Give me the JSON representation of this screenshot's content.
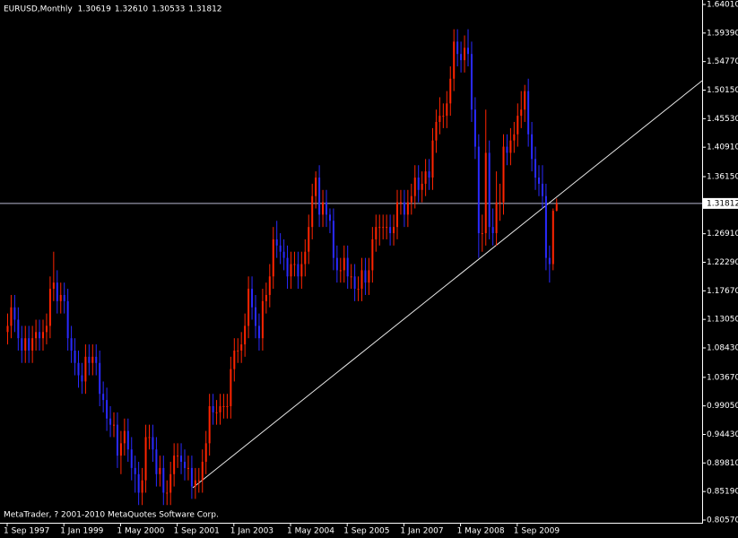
{
  "chart_data": {
    "type": "candlestick",
    "title": "EURUSD,Monthly",
    "last_bar": [
      {
        "value": 1.30619,
        "label": "1.30619"
      },
      {
        "value": 1.3261,
        "label": "1.32610"
      },
      {
        "value": 1.30533,
        "label": "1.30533"
      },
      {
        "value": 1.31812,
        "label": "1.31812"
      }
    ],
    "footer": "MetaTrader, ? 2001-2010 MetaQuotes Software Corp.",
    "up_color": "#ff2400",
    "down_color": "#2a2aff",
    "background": "#000000",
    "grid": false,
    "current_price": {
      "value": 1.31812,
      "label": "1.31812"
    },
    "ylim": [
      0.8057,
      1.6401
    ],
    "yticks": [
      {
        "value": 1.6401,
        "label": "1.64010"
      },
      {
        "value": 1.5939,
        "label": "1.59390"
      },
      {
        "value": 1.5477,
        "label": "1.54770"
      },
      {
        "value": 1.5015,
        "label": "1.50150"
      },
      {
        "value": 1.4553,
        "label": "1.45530"
      },
      {
        "value": 1.4091,
        "label": "1.40910"
      },
      {
        "value": 1.3615,
        "label": "1.36150"
      },
      {
        "value": 1.2691,
        "label": "1.26910"
      },
      {
        "value": 1.2229,
        "label": "1.22290"
      },
      {
        "value": 1.1767,
        "label": "1.17670"
      },
      {
        "value": 1.1305,
        "label": "1.13050"
      },
      {
        "value": 1.0843,
        "label": "1.08430"
      },
      {
        "value": 1.0367,
        "label": "1.03670"
      },
      {
        "value": 0.9905,
        "label": "0.99050"
      },
      {
        "value": 0.9443,
        "label": "0.94430"
      },
      {
        "value": 0.8981,
        "label": "0.89810"
      },
      {
        "value": 0.8519,
        "label": "0.85190"
      },
      {
        "value": 0.8057,
        "label": "0.80570"
      }
    ],
    "categories": [
      "1 Sep 1997",
      null,
      null,
      null,
      null,
      null,
      null,
      null,
      null,
      null,
      null,
      null,
      null,
      null,
      null,
      null,
      "1 Jan 1999",
      null,
      null,
      null,
      null,
      null,
      null,
      null,
      null,
      null,
      null,
      null,
      null,
      null,
      null,
      null,
      "1 May 2000",
      null,
      null,
      null,
      null,
      null,
      null,
      null,
      null,
      null,
      null,
      null,
      null,
      null,
      null,
      null,
      "1 Sep 2001",
      null,
      null,
      null,
      null,
      null,
      null,
      null,
      null,
      null,
      null,
      null,
      null,
      null,
      null,
      null,
      "1 Jan 2003",
      null,
      null,
      null,
      null,
      null,
      null,
      null,
      null,
      null,
      null,
      null,
      null,
      null,
      null,
      null,
      "1 May 2004",
      null,
      null,
      null,
      null,
      null,
      null,
      null,
      null,
      null,
      null,
      null,
      null,
      null,
      null,
      null,
      "1 Sep 2005",
      null,
      null,
      null,
      null,
      null,
      null,
      null,
      null,
      null,
      null,
      null,
      null,
      null,
      null,
      null,
      "1 Jan 2007",
      null,
      null,
      null,
      null,
      null,
      null,
      null,
      null,
      null,
      null,
      null,
      null,
      null,
      null,
      null,
      "1 May 2008",
      null,
      null,
      null,
      null,
      null,
      null,
      null,
      null,
      null,
      null,
      null,
      null,
      null,
      null,
      null,
      "1 Sep 2009",
      null,
      null,
      null,
      null,
      null,
      null,
      null,
      null,
      null,
      null,
      null
    ],
    "candles": [
      [
        1.11,
        1.14,
        1.09,
        1.12
      ],
      [
        1.12,
        1.17,
        1.1,
        1.15
      ],
      [
        1.15,
        1.17,
        1.11,
        1.13
      ],
      [
        1.13,
        1.15,
        1.08,
        1.1
      ],
      [
        1.1,
        1.12,
        1.06,
        1.08
      ],
      [
        1.08,
        1.12,
        1.06,
        1.1
      ],
      [
        1.1,
        1.12,
        1.06,
        1.08
      ],
      [
        1.08,
        1.12,
        1.06,
        1.1
      ],
      [
        1.1,
        1.13,
        1.08,
        1.11
      ],
      [
        1.11,
        1.13,
        1.08,
        1.1
      ],
      [
        1.1,
        1.13,
        1.08,
        1.11
      ],
      [
        1.11,
        1.14,
        1.09,
        1.12
      ],
      [
        1.12,
        1.2,
        1.1,
        1.18
      ],
      [
        1.18,
        1.24,
        1.16,
        1.19
      ],
      [
        1.19,
        1.21,
        1.14,
        1.16
      ],
      [
        1.16,
        1.19,
        1.14,
        1.17
      ],
      [
        1.17,
        1.19,
        1.14,
        1.16
      ],
      [
        1.16,
        1.18,
        1.08,
        1.1
      ],
      [
        1.1,
        1.12,
        1.06,
        1.08
      ],
      [
        1.08,
        1.1,
        1.04,
        1.06
      ],
      [
        1.06,
        1.08,
        1.02,
        1.04
      ],
      [
        1.04,
        1.06,
        1.01,
        1.03
      ],
      [
        1.03,
        1.09,
        1.01,
        1.07
      ],
      [
        1.07,
        1.09,
        1.04,
        1.06
      ],
      [
        1.06,
        1.09,
        1.04,
        1.07
      ],
      [
        1.07,
        1.09,
        1.04,
        1.06
      ],
      [
        1.06,
        1.08,
        0.99,
        1.01
      ],
      [
        1.01,
        1.03,
        0.98,
        1.0
      ],
      [
        1.0,
        1.02,
        0.95,
        0.97
      ],
      [
        0.97,
        0.99,
        0.94,
        0.96
      ],
      [
        0.96,
        0.98,
        0.94,
        0.96
      ],
      [
        0.96,
        0.98,
        0.89,
        0.91
      ],
      [
        0.91,
        0.95,
        0.88,
        0.93
      ],
      [
        0.93,
        0.97,
        0.91,
        0.95
      ],
      [
        0.95,
        0.97,
        0.9,
        0.92
      ],
      [
        0.92,
        0.94,
        0.87,
        0.89
      ],
      [
        0.89,
        0.91,
        0.85,
        0.88
      ],
      [
        0.88,
        0.9,
        0.83,
        0.85
      ],
      [
        0.85,
        0.89,
        0.83,
        0.87
      ],
      [
        0.87,
        0.96,
        0.85,
        0.94
      ],
      [
        0.94,
        0.96,
        0.92,
        0.94
      ],
      [
        0.94,
        0.96,
        0.9,
        0.92
      ],
      [
        0.92,
        0.94,
        0.86,
        0.88
      ],
      [
        0.88,
        0.91,
        0.86,
        0.89
      ],
      [
        0.89,
        0.91,
        0.83,
        0.85
      ],
      [
        0.85,
        0.87,
        0.83,
        0.85
      ],
      [
        0.85,
        0.9,
        0.83,
        0.88
      ],
      [
        0.88,
        0.93,
        0.86,
        0.91
      ],
      [
        0.91,
        0.93,
        0.89,
        0.91
      ],
      [
        0.91,
        0.93,
        0.88,
        0.9
      ],
      [
        0.9,
        0.92,
        0.87,
        0.89
      ],
      [
        0.89,
        0.91,
        0.87,
        0.89
      ],
      [
        0.89,
        0.91,
        0.84,
        0.86
      ],
      [
        0.86,
        0.89,
        0.84,
        0.87
      ],
      [
        0.87,
        0.89,
        0.85,
        0.87
      ],
      [
        0.87,
        0.92,
        0.85,
        0.9
      ],
      [
        0.9,
        0.95,
        0.88,
        0.93
      ],
      [
        0.93,
        1.01,
        0.91,
        0.99
      ],
      [
        0.99,
        1.01,
        0.96,
        0.98
      ],
      [
        0.98,
        1.0,
        0.96,
        0.98
      ],
      [
        0.98,
        1.01,
        0.96,
        0.99
      ],
      [
        0.99,
        1.01,
        0.97,
        0.99
      ],
      [
        0.99,
        1.01,
        0.97,
        0.99
      ],
      [
        0.99,
        1.07,
        0.97,
        1.05
      ],
      [
        1.05,
        1.1,
        1.03,
        1.08
      ],
      [
        1.08,
        1.1,
        1.06,
        1.08
      ],
      [
        1.08,
        1.11,
        1.06,
        1.09
      ],
      [
        1.09,
        1.14,
        1.07,
        1.12
      ],
      [
        1.12,
        1.2,
        1.1,
        1.18
      ],
      [
        1.18,
        1.2,
        1.13,
        1.15
      ],
      [
        1.15,
        1.17,
        1.1,
        1.12
      ],
      [
        1.12,
        1.14,
        1.08,
        1.1
      ],
      [
        1.1,
        1.18,
        1.08,
        1.16
      ],
      [
        1.16,
        1.19,
        1.14,
        1.17
      ],
      [
        1.17,
        1.22,
        1.15,
        1.2
      ],
      [
        1.2,
        1.28,
        1.18,
        1.26
      ],
      [
        1.26,
        1.29,
        1.23,
        1.25
      ],
      [
        1.25,
        1.27,
        1.22,
        1.24
      ],
      [
        1.24,
        1.26,
        1.21,
        1.23
      ],
      [
        1.23,
        1.25,
        1.18,
        1.2
      ],
      [
        1.2,
        1.24,
        1.18,
        1.22
      ],
      [
        1.22,
        1.24,
        1.2,
        1.22
      ],
      [
        1.22,
        1.24,
        1.18,
        1.2
      ],
      [
        1.2,
        1.24,
        1.18,
        1.22
      ],
      [
        1.22,
        1.26,
        1.2,
        1.24
      ],
      [
        1.24,
        1.3,
        1.22,
        1.28
      ],
      [
        1.28,
        1.35,
        1.26,
        1.33
      ],
      [
        1.33,
        1.37,
        1.31,
        1.36
      ],
      [
        1.36,
        1.38,
        1.28,
        1.3
      ],
      [
        1.3,
        1.34,
        1.28,
        1.32
      ],
      [
        1.32,
        1.34,
        1.28,
        1.3
      ],
      [
        1.3,
        1.31,
        1.27,
        1.29
      ],
      [
        1.29,
        1.31,
        1.21,
        1.23
      ],
      [
        1.23,
        1.25,
        1.19,
        1.21
      ],
      [
        1.21,
        1.23,
        1.19,
        1.21
      ],
      [
        1.21,
        1.25,
        1.19,
        1.23
      ],
      [
        1.23,
        1.25,
        1.18,
        1.2
      ],
      [
        1.2,
        1.22,
        1.18,
        1.2
      ],
      [
        1.2,
        1.22,
        1.16,
        1.18
      ],
      [
        1.18,
        1.2,
        1.16,
        1.18
      ],
      [
        1.18,
        1.23,
        1.16,
        1.21
      ],
      [
        1.21,
        1.23,
        1.17,
        1.19
      ],
      [
        1.19,
        1.23,
        1.17,
        1.21
      ],
      [
        1.21,
        1.28,
        1.19,
        1.26
      ],
      [
        1.26,
        1.3,
        1.24,
        1.28
      ],
      [
        1.28,
        1.3,
        1.25,
        1.28
      ],
      [
        1.28,
        1.3,
        1.26,
        1.28
      ],
      [
        1.28,
        1.3,
        1.26,
        1.28
      ],
      [
        1.28,
        1.3,
        1.25,
        1.27
      ],
      [
        1.27,
        1.3,
        1.25,
        1.28
      ],
      [
        1.28,
        1.34,
        1.26,
        1.32
      ],
      [
        1.32,
        1.34,
        1.3,
        1.32
      ],
      [
        1.32,
        1.34,
        1.28,
        1.3
      ],
      [
        1.3,
        1.34,
        1.28,
        1.32
      ],
      [
        1.32,
        1.35,
        1.3,
        1.33
      ],
      [
        1.33,
        1.38,
        1.31,
        1.36
      ],
      [
        1.36,
        1.38,
        1.32,
        1.34
      ],
      [
        1.34,
        1.37,
        1.32,
        1.35
      ],
      [
        1.35,
        1.39,
        1.33,
        1.37
      ],
      [
        1.37,
        1.39,
        1.34,
        1.36
      ],
      [
        1.36,
        1.44,
        1.34,
        1.42
      ],
      [
        1.42,
        1.47,
        1.4,
        1.45
      ],
      [
        1.45,
        1.49,
        1.43,
        1.46
      ],
      [
        1.46,
        1.48,
        1.44,
        1.46
      ],
      [
        1.46,
        1.5,
        1.44,
        1.48
      ],
      [
        1.48,
        1.54,
        1.46,
        1.52
      ],
      [
        1.52,
        1.6,
        1.5,
        1.58
      ],
      [
        1.58,
        1.6,
        1.54,
        1.56
      ],
      [
        1.56,
        1.58,
        1.53,
        1.55
      ],
      [
        1.55,
        1.59,
        1.53,
        1.57
      ],
      [
        1.57,
        1.6,
        1.54,
        1.56
      ],
      [
        1.56,
        1.58,
        1.45,
        1.47
      ],
      [
        1.47,
        1.49,
        1.39,
        1.41
      ],
      [
        1.41,
        1.43,
        1.23,
        1.27
      ],
      [
        1.27,
        1.3,
        1.24,
        1.27
      ],
      [
        1.27,
        1.47,
        1.25,
        1.4
      ],
      [
        1.4,
        1.42,
        1.26,
        1.28
      ],
      [
        1.28,
        1.31,
        1.25,
        1.27
      ],
      [
        1.27,
        1.37,
        1.25,
        1.32
      ],
      [
        1.32,
        1.35,
        1.29,
        1.32
      ],
      [
        1.32,
        1.43,
        1.3,
        1.41
      ],
      [
        1.41,
        1.43,
        1.38,
        1.4
      ],
      [
        1.4,
        1.44,
        1.38,
        1.42
      ],
      [
        1.42,
        1.45,
        1.4,
        1.43
      ],
      [
        1.43,
        1.48,
        1.41,
        1.46
      ],
      [
        1.46,
        1.5,
        1.44,
        1.47
      ],
      [
        1.47,
        1.51,
        1.45,
        1.5
      ],
      [
        1.5,
        1.52,
        1.41,
        1.43
      ],
      [
        1.43,
        1.45,
        1.37,
        1.39
      ],
      [
        1.39,
        1.41,
        1.34,
        1.36
      ],
      [
        1.36,
        1.38,
        1.33,
        1.35
      ],
      [
        1.35,
        1.38,
        1.31,
        1.33
      ],
      [
        1.33,
        1.35,
        1.21,
        1.23
      ],
      [
        1.23,
        1.25,
        1.19,
        1.22
      ],
      [
        1.22,
        1.31,
        1.21,
        1.30619
      ],
      [
        1.30619,
        1.3261,
        1.30533,
        1.31812
      ]
    ]
  }
}
